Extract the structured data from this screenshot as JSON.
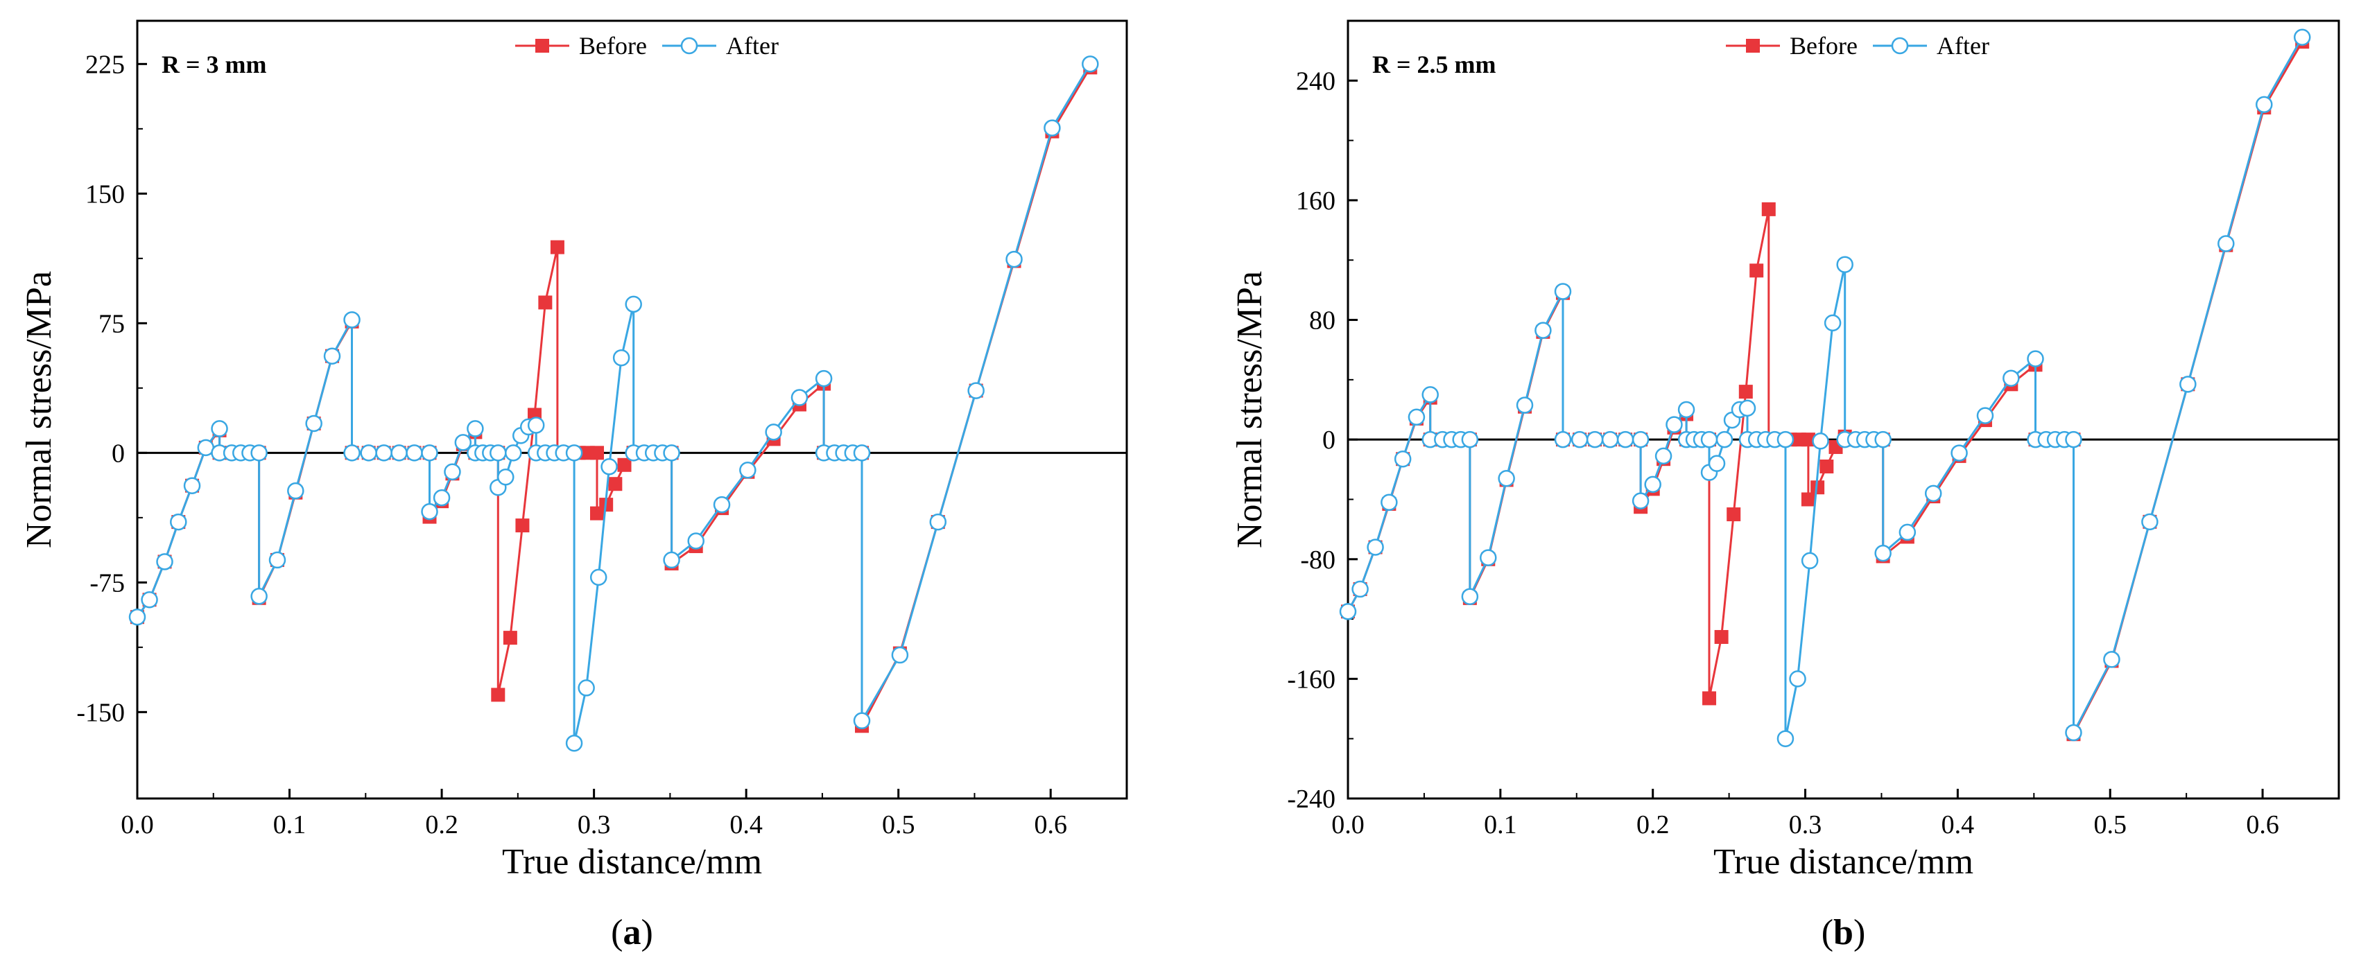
{
  "colors": {
    "before": "#e8363b",
    "after": "#39a7e3",
    "axis": "#000000"
  },
  "chart_data": [
    {
      "type": "line",
      "panel_label": "a",
      "annotation": "R = 3 mm",
      "xlabel": "True distance/mm",
      "ylabel": "Normal stress/MPa",
      "xlim": [
        0,
        0.65
      ],
      "ylim": [
        -200,
        250
      ],
      "xticks": [
        0.0,
        0.1,
        0.2,
        0.3,
        0.4,
        0.5,
        0.6
      ],
      "xtick_labels": [
        "0.0",
        "0.1",
        "0.2",
        "0.3",
        "0.4",
        "0.5",
        "0.6"
      ],
      "yticks": [
        -150,
        -75,
        0,
        75,
        150,
        225
      ],
      "ytick_labels": [
        "-150",
        "-75",
        "0",
        "75",
        "150",
        "225"
      ],
      "zero_line": true,
      "legend_position": "top-center",
      "series": [
        {
          "name": "Before",
          "marker": "square",
          "x": [
            0.0,
            0.008,
            0.018,
            0.027,
            0.036,
            0.045,
            0.054,
            0.054,
            0.062,
            0.068,
            0.074,
            0.08,
            0.08,
            0.092,
            0.104,
            0.116,
            0.128,
            0.141,
            0.141,
            0.152,
            0.162,
            0.172,
            0.182,
            0.192,
            0.192,
            0.2,
            0.207,
            0.214,
            0.222,
            0.222,
            0.227,
            0.232,
            0.237,
            0.237,
            0.245,
            0.253,
            0.261,
            0.268,
            0.276,
            0.276,
            0.283,
            0.29,
            0.296,
            0.302,
            0.302,
            0.308,
            0.314,
            0.32,
            0.326,
            0.326,
            0.333,
            0.339,
            0.345,
            0.351,
            0.351,
            0.367,
            0.384,
            0.401,
            0.418,
            0.435,
            0.451,
            0.451,
            0.458,
            0.464,
            0.47,
            0.476,
            0.476,
            0.501,
            0.526,
            0.551,
            0.576,
            0.601,
            0.626
          ],
          "y": [
            -95,
            -85,
            -63,
            -40,
            -19,
            3,
            13,
            0,
            0,
            0,
            0,
            0,
            -84,
            -62,
            -23,
            17,
            56,
            76,
            0,
            0,
            0,
            0,
            0,
            0,
            -37,
            -28,
            -12,
            5,
            12,
            0,
            0,
            0,
            0,
            -140,
            -107,
            -42,
            22,
            87,
            119,
            0,
            0,
            0,
            0,
            0,
            -35,
            -30,
            -18,
            -7,
            0,
            0,
            0,
            0,
            0,
            0,
            -64,
            -54,
            -32,
            -11,
            8,
            28,
            40,
            0,
            0,
            0,
            0,
            0,
            -158,
            -116,
            -40,
            36,
            111,
            186,
            223
          ]
        },
        {
          "name": "After",
          "marker": "circle",
          "x": [
            0.0,
            0.008,
            0.018,
            0.027,
            0.036,
            0.045,
            0.054,
            0.054,
            0.062,
            0.068,
            0.074,
            0.08,
            0.08,
            0.092,
            0.104,
            0.116,
            0.128,
            0.141,
            0.141,
            0.152,
            0.162,
            0.172,
            0.182,
            0.192,
            0.192,
            0.2,
            0.207,
            0.214,
            0.222,
            0.222,
            0.227,
            0.232,
            0.237,
            0.237,
            0.242,
            0.247,
            0.252,
            0.257,
            0.262,
            0.262,
            0.268,
            0.274,
            0.28,
            0.287,
            0.287,
            0.295,
            0.303,
            0.31,
            0.318,
            0.326,
            0.326,
            0.333,
            0.339,
            0.345,
            0.351,
            0.351,
            0.367,
            0.384,
            0.401,
            0.418,
            0.435,
            0.451,
            0.451,
            0.458,
            0.464,
            0.47,
            0.476,
            0.476,
            0.501,
            0.526,
            0.551,
            0.576,
            0.601,
            0.626
          ],
          "y": [
            -95,
            -85,
            -63,
            -40,
            -19,
            3,
            14,
            0,
            0,
            0,
            0,
            0,
            -83,
            -62,
            -22,
            17,
            56,
            77,
            0,
            0,
            0,
            0,
            0,
            0,
            -34,
            -26,
            -11,
            6,
            14,
            0,
            0,
            0,
            0,
            -20,
            -14,
            0,
            10,
            15,
            16,
            0,
            0,
            0,
            0,
            0,
            -168,
            -136,
            -72,
            -8,
            55,
            86,
            0,
            0,
            0,
            0,
            0,
            -62,
            -51,
            -30,
            -10,
            12,
            32,
            43,
            0,
            0,
            0,
            0,
            0,
            -155,
            -117,
            -40,
            36,
            112,
            188,
            225
          ]
        }
      ]
    },
    {
      "type": "line",
      "panel_label": "b",
      "annotation": "R = 2.5 mm",
      "xlabel": "True distance/mm",
      "ylabel": "Normal stress/MPa",
      "xlim": [
        0,
        0.65
      ],
      "ylim": [
        -240,
        280
      ],
      "xticks": [
        0.0,
        0.1,
        0.2,
        0.3,
        0.4,
        0.5,
        0.6
      ],
      "xtick_labels": [
        "0.0",
        "0.1",
        "0.2",
        "0.3",
        "0.4",
        "0.5",
        "0.6"
      ],
      "yticks": [
        -240,
        -160,
        -80,
        0,
        80,
        160,
        240
      ],
      "ytick_labels": [
        "-240",
        "-160",
        "-80",
        "0",
        "80",
        "160",
        "240"
      ],
      "zero_line": true,
      "legend_position": "top-center",
      "series": [
        {
          "name": "Before",
          "marker": "square",
          "x": [
            0.0,
            0.008,
            0.018,
            0.027,
            0.036,
            0.045,
            0.054,
            0.054,
            0.062,
            0.068,
            0.074,
            0.08,
            0.08,
            0.092,
            0.104,
            0.116,
            0.128,
            0.141,
            0.141,
            0.152,
            0.162,
            0.172,
            0.182,
            0.192,
            0.192,
            0.2,
            0.207,
            0.214,
            0.222,
            0.222,
            0.227,
            0.232,
            0.237,
            0.237,
            0.245,
            0.253,
            0.261,
            0.268,
            0.276,
            0.276,
            0.283,
            0.29,
            0.296,
            0.302,
            0.302,
            0.308,
            0.314,
            0.32,
            0.326,
            0.326,
            0.333,
            0.339,
            0.345,
            0.351,
            0.351,
            0.367,
            0.384,
            0.401,
            0.418,
            0.435,
            0.451,
            0.451,
            0.458,
            0.464,
            0.47,
            0.476,
            0.476,
            0.501,
            0.526,
            0.551,
            0.576,
            0.601,
            0.626
          ],
          "y": [
            -115,
            -100,
            -72,
            -43,
            -13,
            14,
            28,
            0,
            0,
            0,
            0,
            0,
            -106,
            -80,
            -27,
            22,
            72,
            98,
            0,
            0,
            0,
            0,
            0,
            0,
            -45,
            -33,
            -13,
            8,
            17,
            0,
            0,
            0,
            0,
            -173,
            -132,
            -50,
            32,
            113,
            154,
            0,
            0,
            0,
            0,
            0,
            -40,
            -32,
            -18,
            -5,
            2,
            0,
            0,
            0,
            0,
            0,
            -78,
            -65,
            -38,
            -11,
            13,
            37,
            50,
            0,
            0,
            0,
            0,
            0,
            -197,
            -148,
            -55,
            37,
            130,
            222,
            266
          ]
        },
        {
          "name": "After",
          "marker": "circle",
          "x": [
            0.0,
            0.008,
            0.018,
            0.027,
            0.036,
            0.045,
            0.054,
            0.054,
            0.062,
            0.068,
            0.074,
            0.08,
            0.08,
            0.092,
            0.104,
            0.116,
            0.128,
            0.141,
            0.141,
            0.152,
            0.162,
            0.172,
            0.182,
            0.192,
            0.192,
            0.2,
            0.207,
            0.214,
            0.222,
            0.222,
            0.227,
            0.232,
            0.237,
            0.237,
            0.242,
            0.247,
            0.252,
            0.257,
            0.262,
            0.262,
            0.268,
            0.274,
            0.28,
            0.287,
            0.287,
            0.295,
            0.303,
            0.31,
            0.318,
            0.326,
            0.326,
            0.333,
            0.339,
            0.345,
            0.351,
            0.351,
            0.367,
            0.384,
            0.401,
            0.418,
            0.435,
            0.451,
            0.451,
            0.458,
            0.464,
            0.47,
            0.476,
            0.476,
            0.501,
            0.526,
            0.551,
            0.576,
            0.601,
            0.626
          ],
          "y": [
            -115,
            -100,
            -72,
            -42,
            -13,
            15,
            30,
            0,
            0,
            0,
            0,
            0,
            -105,
            -79,
            -26,
            23,
            73,
            99,
            0,
            0,
            0,
            0,
            0,
            0,
            -41,
            -30,
            -11,
            10,
            20,
            0,
            0,
            0,
            0,
            -22,
            -16,
            0,
            13,
            20,
            21,
            0,
            0,
            0,
            0,
            0,
            -200,
            -160,
            -81,
            -1,
            78,
            117,
            0,
            0,
            0,
            0,
            0,
            -76,
            -62,
            -36,
            -9,
            16,
            41,
            54,
            0,
            0,
            0,
            0,
            0,
            -196,
            -147,
            -55,
            37,
            131,
            224,
            269
          ]
        }
      ]
    }
  ]
}
